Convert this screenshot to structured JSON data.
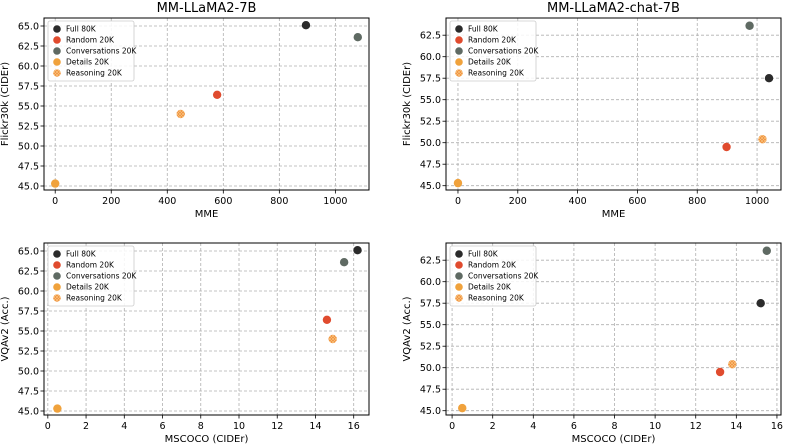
{
  "legend_labels": [
    "Full 80K",
    "Random 20K",
    "Conversations 20K",
    "Details 20K",
    "Reasoning 20K"
  ],
  "colors": {
    "full": "#2b2b2b",
    "random": "#e04b2e",
    "conversations": "#5f6a63",
    "details": "#f0a23c",
    "reasoning": "#f07f2a",
    "reasoning_pattern": "#f6c27a",
    "grid": "#b0b0b0"
  },
  "chart_data": [
    {
      "type": "scatter",
      "title": "MM-LLaMA2-7B",
      "xlabel": "MME",
      "ylabel": "Flickr30k (CIDEr)",
      "xlim": [
        -40,
        1120
      ],
      "ylim": [
        44.5,
        66.0
      ],
      "xticks": [
        0,
        200,
        400,
        600,
        800,
        1000
      ],
      "yticks": [
        45.0,
        47.5,
        50.0,
        52.5,
        55.0,
        57.5,
        60.0,
        62.5,
        65.0
      ],
      "legend_position": "top-left",
      "grid": true,
      "points": [
        {
          "series": "Full 80K",
          "x": 895,
          "y": 65.1
        },
        {
          "series": "Random 20K",
          "x": 578,
          "y": 56.4
        },
        {
          "series": "Conversations 20K",
          "x": 1080,
          "y": 63.6
        },
        {
          "series": "Details 20K",
          "x": 0,
          "y": 45.3
        },
        {
          "series": "Reasoning 20K",
          "x": 448,
          "y": 54.0
        }
      ]
    },
    {
      "type": "scatter",
      "title": "MM-LLaMA2-chat-7B",
      "xlabel": "MME",
      "ylabel": "Flickr30k (CIDEr)",
      "xlim": [
        -40,
        1080
      ],
      "ylim": [
        44.5,
        64.5
      ],
      "xticks": [
        0,
        200,
        400,
        600,
        800,
        1000
      ],
      "yticks": [
        45.0,
        47.5,
        50.0,
        52.5,
        55.0,
        57.5,
        60.0,
        62.5
      ],
      "legend_position": "top-left",
      "grid": true,
      "points": [
        {
          "series": "Full 80K",
          "x": 1040,
          "y": 57.5
        },
        {
          "series": "Random 20K",
          "x": 898,
          "y": 49.5
        },
        {
          "series": "Conversations 20K",
          "x": 975,
          "y": 63.6
        },
        {
          "series": "Details 20K",
          "x": 0,
          "y": 45.3
        },
        {
          "series": "Reasoning 20K",
          "x": 1018,
          "y": 50.4
        }
      ]
    },
    {
      "type": "scatter",
      "title": "",
      "xlabel": "MSCOCO (CIDEr)",
      "ylabel": "VQAv2 (Acc.)",
      "xlim": [
        -0.2,
        16.8
      ],
      "ylim": [
        44.5,
        66.0
      ],
      "xticks": [
        0,
        2,
        4,
        6,
        8,
        10,
        12,
        14,
        16
      ],
      "yticks": [
        45.0,
        47.5,
        50.0,
        52.5,
        55.0,
        57.5,
        60.0,
        62.5,
        65.0
      ],
      "legend_position": "top-left",
      "grid": true,
      "points": [
        {
          "series": "Full 80K",
          "x": 16.2,
          "y": 65.1
        },
        {
          "series": "Random 20K",
          "x": 14.6,
          "y": 56.4
        },
        {
          "series": "Conversations 20K",
          "x": 15.5,
          "y": 63.6
        },
        {
          "series": "Details 20K",
          "x": 0.5,
          "y": 45.3
        },
        {
          "series": "Reasoning 20K",
          "x": 14.9,
          "y": 54.0
        }
      ]
    },
    {
      "type": "scatter",
      "title": "",
      "xlabel": "MSCOCO (CIDEr)",
      "ylabel": "VQAv2 (Acc.)",
      "xlim": [
        -0.3,
        16.2
      ],
      "ylim": [
        44.5,
        64.5
      ],
      "xticks": [
        0,
        2,
        4,
        6,
        8,
        10,
        12,
        14,
        16
      ],
      "yticks": [
        45.0,
        47.5,
        50.0,
        52.5,
        55.0,
        57.5,
        60.0,
        62.5
      ],
      "legend_position": "top-left",
      "grid": true,
      "points": [
        {
          "series": "Full 80K",
          "x": 15.2,
          "y": 57.5
        },
        {
          "series": "Random 20K",
          "x": 13.2,
          "y": 49.5
        },
        {
          "series": "Conversations 20K",
          "x": 15.5,
          "y": 63.6
        },
        {
          "series": "Details 20K",
          "x": 0.5,
          "y": 45.3
        },
        {
          "series": "Reasoning 20K",
          "x": 13.8,
          "y": 50.4
        }
      ]
    }
  ]
}
